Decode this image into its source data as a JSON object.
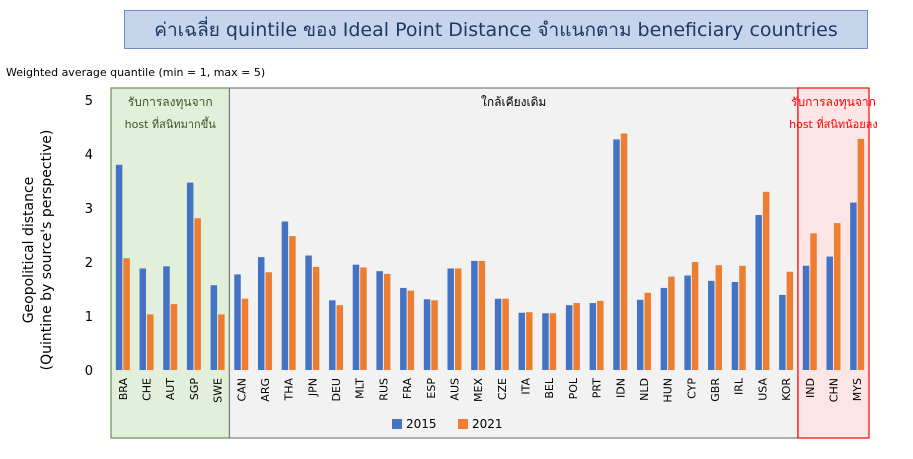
{
  "title": "ค่าเฉลี่ย quintile ของ Ideal Point Distance จำแนกตาม beneficiary countries",
  "subtitle": "Weighted average quantile (min = 1, max = 5)",
  "ylabel_line1": "Geopolitical distance",
  "ylabel_line2": "(Quintine by source's perspective)",
  "groups": [
    {
      "label_line1": "รับการลงทุนจาก",
      "label_line2": "host ที่สนิทมากขึ้น",
      "color": "#e2efda",
      "text_color": "#375623"
    },
    {
      "label_line1": "ใกล้เคียงเดิม",
      "label_line2": "",
      "color": "#f2f2f2",
      "text_color": "#000000"
    },
    {
      "label_line1": "รับการลงทุนจาก",
      "label_line2": "host ที่สนิทน้อยลง",
      "color": "#fbe5e5",
      "text_color": "#ff0000"
    }
  ],
  "colors": {
    "s2015": "#4472c4",
    "s2021": "#ed7d31"
  },
  "chart_data": {
    "type": "bar",
    "categories": [
      "BRA",
      "CHE",
      "AUT",
      "SGP",
      "SWE",
      "CAN",
      "ARG",
      "THA",
      "JPN",
      "DEU",
      "MLT",
      "RUS",
      "FRA",
      "ESP",
      "AUS",
      "MEX",
      "CZE",
      "ITA",
      "BEL",
      "POL",
      "PRT",
      "IDN",
      "NLD",
      "HUN",
      "CYP",
      "GBR",
      "IRL",
      "USA",
      "KOR",
      "IND",
      "CHN",
      "MYS"
    ],
    "series": [
      {
        "name": "2015",
        "values": [
          3.8,
          1.88,
          1.92,
          3.47,
          1.57,
          1.77,
          2.09,
          2.75,
          2.12,
          1.29,
          1.95,
          1.83,
          1.52,
          1.31,
          1.88,
          2.02,
          1.32,
          1.06,
          1.05,
          1.2,
          1.24,
          4.27,
          1.3,
          1.52,
          1.75,
          1.65,
          1.63,
          2.87,
          1.39,
          1.93,
          2.1,
          3.1
        ]
      },
      {
        "name": "2021",
        "values": [
          2.07,
          1.03,
          1.22,
          2.81,
          1.03,
          1.32,
          1.81,
          2.48,
          1.91,
          1.2,
          1.9,
          1.78,
          1.47,
          1.29,
          1.88,
          2.02,
          1.32,
          1.07,
          1.05,
          1.24,
          1.28,
          4.38,
          1.43,
          1.73,
          2.0,
          1.94,
          1.93,
          3.3,
          1.82,
          2.53,
          2.72,
          4.28
        ]
      }
    ],
    "group_ranges": [
      [
        0,
        4
      ],
      [
        5,
        28
      ],
      [
        29,
        31
      ]
    ],
    "ylim": [
      0,
      5
    ],
    "yticks": [
      "0",
      "1",
      "2",
      "3",
      "4",
      "5"
    ],
    "legend": "bottom-center",
    "grid": false
  }
}
